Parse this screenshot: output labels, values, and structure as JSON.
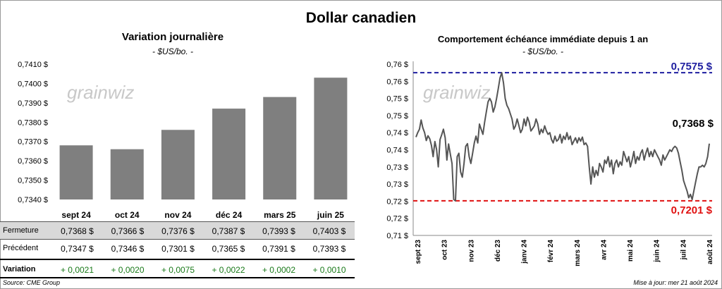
{
  "title": "Dollar canadien",
  "source": "Source: CME Group",
  "updated": "Mise à jour: mer 21 août 2024",
  "watermark": "grainwiz",
  "table": {
    "months": [
      "sept 24",
      "oct 24",
      "nov 24",
      "déc 24",
      "mars 25",
      "juin 25"
    ],
    "rows": [
      {
        "label": "Fermeture",
        "values": [
          "0,7368  $",
          "0,7366  $",
          "0,7376  $",
          "0,7387  $",
          "0,7393  $",
          "0,7403  $"
        ]
      },
      {
        "label": "Précédent",
        "values": [
          "0,7347  $",
          "0,7346  $",
          "0,7301  $",
          "0,7365  $",
          "0,7391  $",
          "0,7393  $"
        ]
      },
      {
        "label": "Variation",
        "values": [
          "+ 0,0021",
          "+ 0,0020",
          "+ 0,0075",
          "+ 0,0022",
          "+ 0,0002",
          "+ 0,0010"
        ]
      }
    ]
  },
  "chart_data": [
    {
      "type": "bar",
      "title": "Variation  journalière",
      "subtitle": "- $US/bo. -",
      "categories": [
        "sept 24",
        "oct 24",
        "nov 24",
        "déc 24",
        "mars 25",
        "juin 25"
      ],
      "values": [
        0.7368,
        0.7366,
        0.7376,
        0.7387,
        0.7393,
        0.7403
      ],
      "ylim": [
        0.734,
        0.741
      ],
      "yticks": [
        "0,7340 $",
        "0,7350 $",
        "0,7360 $",
        "0,7370 $",
        "0,7380 $",
        "0,7390 $",
        "0,7400 $",
        "0,7410 $"
      ],
      "bar_color": "#7f7f7f"
    },
    {
      "type": "line",
      "title": "Comportement échéance immédiate depuis 1 an",
      "subtitle": "- $US/bo. -",
      "ylim": [
        0.71,
        0.76
      ],
      "yticks": [
        "0,71 $",
        "0,72 $",
        "0,72 $",
        "0,73 $",
        "0,73 $",
        "0,74 $",
        "0,74 $",
        "0,75 $",
        "0,75 $",
        "0,76 $",
        "0,76 $"
      ],
      "xticks": [
        "sept 23",
        "oct 23",
        "nov 23",
        "déc 23",
        "janv 24",
        "févr 24",
        "mars 24",
        "avr 24",
        "mai 24",
        "juin 24",
        "juil 24",
        "août 24"
      ],
      "high": {
        "value": 0.7575,
        "label": "0,7575 $",
        "color": "#1f1fa0"
      },
      "low": {
        "value": 0.7201,
        "label": "0,7201 $",
        "color": "#e01010"
      },
      "last_label": "0,7368 $",
      "line_color": "#555555",
      "values": [
        0.7387,
        0.74,
        0.741,
        0.7437,
        0.7414,
        0.74,
        0.7377,
        0.7391,
        0.7382,
        0.7363,
        0.733,
        0.7374,
        0.7351,
        0.73,
        0.738,
        0.7394,
        0.741,
        0.7385,
        0.732,
        0.7367,
        0.7337,
        0.731,
        0.7205,
        0.7201,
        0.733,
        0.734,
        0.7285,
        0.727,
        0.731,
        0.736,
        0.7368,
        0.733,
        0.731,
        0.734,
        0.737,
        0.739,
        0.737,
        0.7425,
        0.741,
        0.7395,
        0.743,
        0.746,
        0.749,
        0.75,
        0.749,
        0.746,
        0.7475,
        0.75,
        0.753,
        0.756,
        0.7575,
        0.7545,
        0.75,
        0.748,
        0.747,
        0.7455,
        0.744,
        0.741,
        0.742,
        0.744,
        0.742,
        0.74,
        0.741,
        0.744,
        0.742,
        0.7445,
        0.743,
        0.7405,
        0.7412,
        0.742,
        0.744,
        0.7425,
        0.7395,
        0.741,
        0.74,
        0.742,
        0.7405,
        0.7395,
        0.74,
        0.738,
        0.737,
        0.739,
        0.7375,
        0.738,
        0.7395,
        0.737,
        0.739,
        0.738,
        0.74,
        0.738,
        0.739,
        0.7365,
        0.7375,
        0.7385,
        0.737,
        0.7385,
        0.7375,
        0.7387,
        0.7365,
        0.737,
        0.736,
        0.73,
        0.725,
        0.73,
        0.727,
        0.729,
        0.7275,
        0.731,
        0.73,
        0.7285,
        0.732,
        0.731,
        0.733,
        0.73,
        0.732,
        0.728,
        0.731,
        0.732,
        0.73,
        0.7315,
        0.7305,
        0.7345,
        0.733,
        0.7315,
        0.733,
        0.73,
        0.732,
        0.7345,
        0.731,
        0.733,
        0.732,
        0.734,
        0.735,
        0.732,
        0.734,
        0.7355,
        0.733,
        0.7345,
        0.733,
        0.735,
        0.734,
        0.733,
        0.732,
        0.7305,
        0.7335,
        0.732,
        0.733,
        0.734,
        0.735,
        0.7345,
        0.7355,
        0.736,
        0.7355,
        0.734,
        0.7315,
        0.729,
        0.726,
        0.7245,
        0.723,
        0.721,
        0.722,
        0.7205,
        0.723,
        0.7255,
        0.728,
        0.73,
        0.73,
        0.7305,
        0.73,
        0.731,
        0.733,
        0.7368
      ]
    }
  ]
}
